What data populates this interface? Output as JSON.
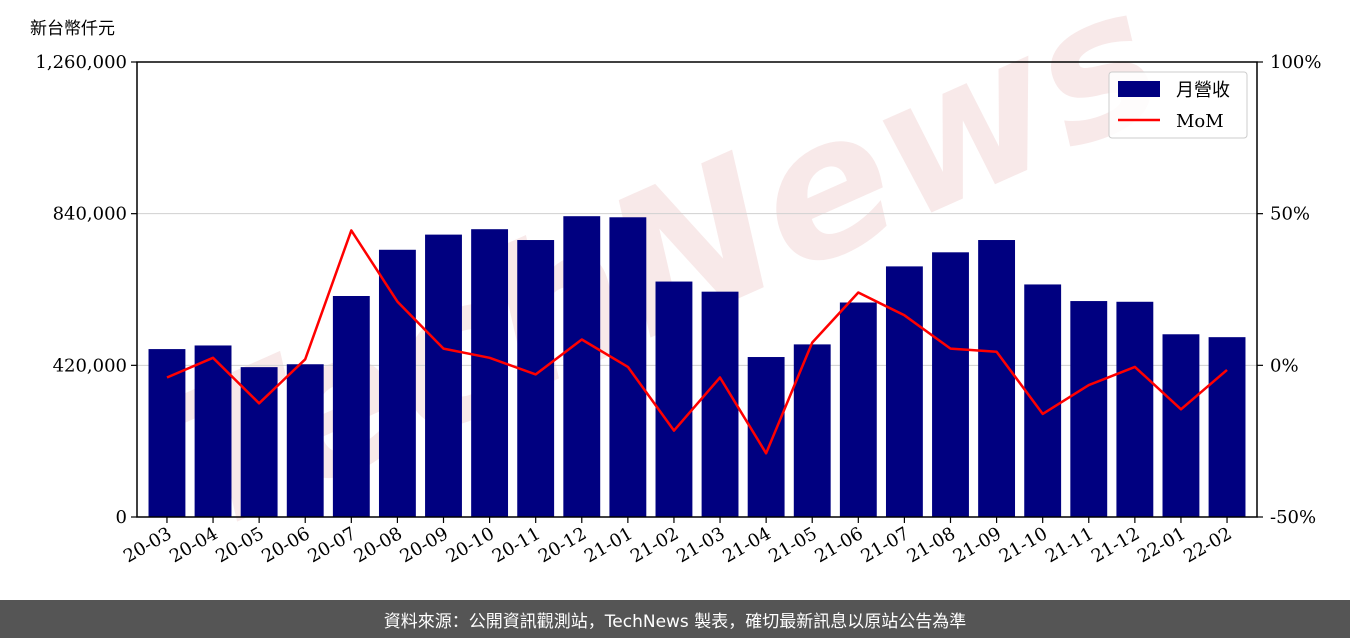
{
  "chart_data": {
    "type": "bar",
    "y_unit": "新台幣仟元",
    "categories": [
      "20-03",
      "20-04",
      "20-05",
      "20-06",
      "20-07",
      "20-08",
      "20-09",
      "20-10",
      "20-11",
      "20-12",
      "21-01",
      "21-02",
      "21-03",
      "21-04",
      "21-05",
      "21-06",
      "21-07",
      "21-08",
      "21-09",
      "21-10",
      "21-11",
      "21-12",
      "22-01",
      "22-02"
    ],
    "series": [
      {
        "name": "月營收",
        "kind": "bar",
        "axis": "left",
        "color": "#000080",
        "values": [
          465000,
          475000,
          415000,
          423000,
          612000,
          740000,
          782000,
          797000,
          767000,
          833000,
          830000,
          652000,
          624000,
          443000,
          478000,
          594000,
          694000,
          733000,
          767000,
          644000,
          598000,
          596000,
          506000,
          498000
        ]
      },
      {
        "name": "MoM",
        "kind": "line",
        "axis": "right",
        "color": "#ff0000",
        "values": [
          -4,
          2.5,
          -12.5,
          2,
          44.5,
          21,
          5.5,
          2.5,
          -3,
          8.5,
          -0.5,
          -21.5,
          -4,
          -29,
          7.5,
          24,
          16.5,
          5.5,
          4.5,
          -16,
          -6.5,
          -0.5,
          -14.5,
          -1.5
        ]
      }
    ],
    "ylim_left": [
      0,
      1260000
    ],
    "yticks_left": [
      "0",
      "420,000",
      "840,000",
      "1,260,000"
    ],
    "ylim_right": [
      -50,
      100
    ],
    "yticks_right": [
      "-50%",
      "0%",
      "50%",
      "100%"
    ],
    "grid": "horizontal",
    "legend": "top-right"
  },
  "watermark": "TechNews",
  "footer_text": "資料來源：公開資訊觀測站，TechNews 製表，確切最新訊息以原站公告為準"
}
